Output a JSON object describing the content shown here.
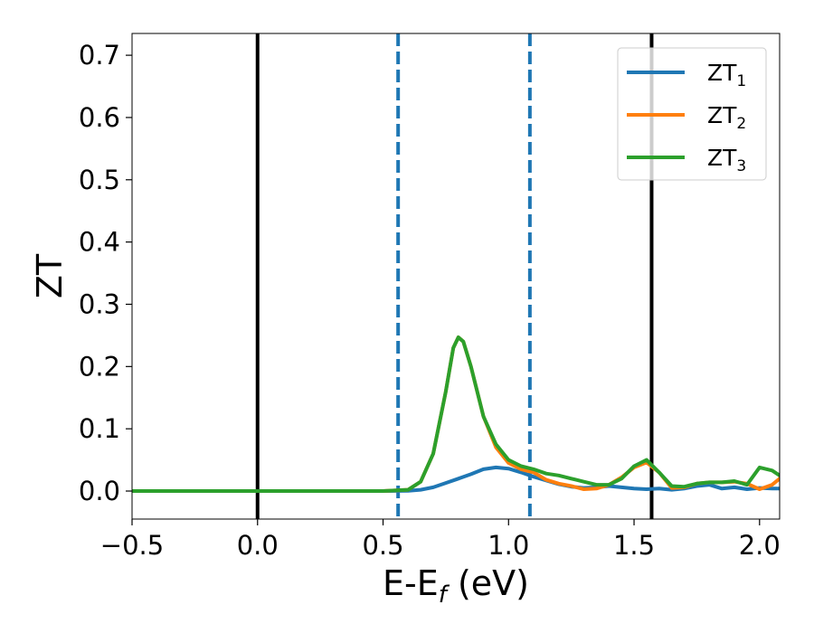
{
  "chart_data": {
    "type": "line",
    "title": "",
    "xlabel": {
      "main": "E-E",
      "sub": "f",
      "suffix": " (eV)"
    },
    "ylabel": "ZT",
    "xlim": [
      -0.5,
      2.08
    ],
    "ylim": [
      -0.045,
      0.735
    ],
    "xticks": [
      -0.5,
      0.0,
      0.5,
      1.0,
      1.5,
      2.0
    ],
    "xtick_labels": [
      "−0.5",
      "0.0",
      "0.5",
      "1.0",
      "1.5",
      "2.0"
    ],
    "yticks": [
      0.0,
      0.1,
      0.2,
      0.3,
      0.4,
      0.5,
      0.6,
      0.7
    ],
    "ytick_labels": [
      "0.0",
      "0.1",
      "0.2",
      "0.3",
      "0.4",
      "0.5",
      "0.6",
      "0.7"
    ],
    "grid": false,
    "legend_position": "top-right",
    "vlines": [
      {
        "x": 0.0,
        "color": "#000000",
        "style": "solid"
      },
      {
        "x": 1.57,
        "color": "#000000",
        "style": "solid"
      },
      {
        "x": 0.56,
        "color": "#1f77b4",
        "style": "dashed"
      },
      {
        "x": 1.085,
        "color": "#1f77b4",
        "style": "dashed"
      }
    ],
    "series": [
      {
        "name": "ZT",
        "sub": "1",
        "color": "#1f77b4",
        "points": [
          [
            -0.5,
            0.0
          ],
          [
            0.5,
            0.0
          ],
          [
            0.6,
            0.0005
          ],
          [
            0.65,
            0.002
          ],
          [
            0.7,
            0.006
          ],
          [
            0.75,
            0.013
          ],
          [
            0.8,
            0.02
          ],
          [
            0.85,
            0.027
          ],
          [
            0.9,
            0.035
          ],
          [
            0.95,
            0.038
          ],
          [
            1.0,
            0.036
          ],
          [
            1.05,
            0.03
          ],
          [
            1.1,
            0.023
          ],
          [
            1.15,
            0.017
          ],
          [
            1.2,
            0.011
          ],
          [
            1.25,
            0.007
          ],
          [
            1.3,
            0.005
          ],
          [
            1.35,
            0.006
          ],
          [
            1.4,
            0.008
          ],
          [
            1.45,
            0.006
          ],
          [
            1.5,
            0.004
          ],
          [
            1.55,
            0.003
          ],
          [
            1.6,
            0.004
          ],
          [
            1.65,
            0.002
          ],
          [
            1.7,
            0.004
          ],
          [
            1.75,
            0.008
          ],
          [
            1.8,
            0.01
          ],
          [
            1.85,
            0.004
          ],
          [
            1.9,
            0.006
          ],
          [
            1.95,
            0.003
          ],
          [
            2.0,
            0.005
          ],
          [
            2.05,
            0.004
          ],
          [
            2.08,
            0.004
          ]
        ]
      },
      {
        "name": "ZT",
        "sub": "2",
        "color": "#ff7f0e",
        "points": [
          [
            -0.5,
            0.0
          ],
          [
            0.5,
            0.0
          ],
          [
            0.6,
            0.002
          ],
          [
            0.65,
            0.015
          ],
          [
            0.7,
            0.06
          ],
          [
            0.75,
            0.16
          ],
          [
            0.78,
            0.23
          ],
          [
            0.8,
            0.247
          ],
          [
            0.82,
            0.24
          ],
          [
            0.85,
            0.2
          ],
          [
            0.9,
            0.12
          ],
          [
            0.95,
            0.07
          ],
          [
            1.0,
            0.045
          ],
          [
            1.05,
            0.035
          ],
          [
            1.1,
            0.03
          ],
          [
            1.15,
            0.018
          ],
          [
            1.2,
            0.012
          ],
          [
            1.25,
            0.008
          ],
          [
            1.3,
            0.003
          ],
          [
            1.35,
            0.004
          ],
          [
            1.4,
            0.01
          ],
          [
            1.45,
            0.022
          ],
          [
            1.5,
            0.038
          ],
          [
            1.55,
            0.046
          ],
          [
            1.6,
            0.03
          ],
          [
            1.65,
            0.005
          ],
          [
            1.7,
            0.006
          ],
          [
            1.75,
            0.012
          ],
          [
            1.8,
            0.014
          ],
          [
            1.85,
            0.014
          ],
          [
            1.9,
            0.015
          ],
          [
            1.95,
            0.012
          ],
          [
            2.0,
            0.003
          ],
          [
            2.05,
            0.01
          ],
          [
            2.08,
            0.02
          ]
        ]
      },
      {
        "name": "ZT",
        "sub": "3",
        "color": "#2ca02c",
        "points": [
          [
            -0.5,
            0.0
          ],
          [
            0.5,
            0.0
          ],
          [
            0.6,
            0.002
          ],
          [
            0.65,
            0.015
          ],
          [
            0.7,
            0.06
          ],
          [
            0.75,
            0.16
          ],
          [
            0.78,
            0.23
          ],
          [
            0.8,
            0.247
          ],
          [
            0.82,
            0.24
          ],
          [
            0.85,
            0.2
          ],
          [
            0.9,
            0.12
          ],
          [
            0.95,
            0.075
          ],
          [
            1.0,
            0.05
          ],
          [
            1.05,
            0.04
          ],
          [
            1.1,
            0.035
          ],
          [
            1.15,
            0.028
          ],
          [
            1.2,
            0.025
          ],
          [
            1.25,
            0.02
          ],
          [
            1.3,
            0.015
          ],
          [
            1.35,
            0.01
          ],
          [
            1.4,
            0.01
          ],
          [
            1.45,
            0.02
          ],
          [
            1.5,
            0.04
          ],
          [
            1.55,
            0.05
          ],
          [
            1.6,
            0.03
          ],
          [
            1.65,
            0.008
          ],
          [
            1.7,
            0.007
          ],
          [
            1.75,
            0.012
          ],
          [
            1.8,
            0.014
          ],
          [
            1.85,
            0.014
          ],
          [
            1.9,
            0.016
          ],
          [
            1.95,
            0.01
          ],
          [
            2.0,
            0.038
          ],
          [
            2.05,
            0.033
          ],
          [
            2.08,
            0.025
          ]
        ]
      }
    ]
  }
}
